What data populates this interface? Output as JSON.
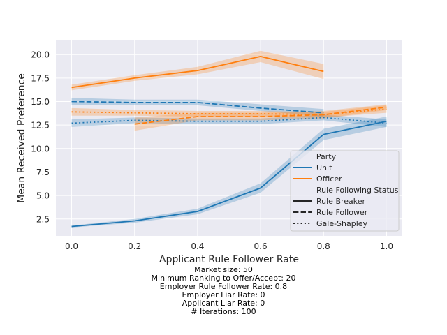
{
  "chart_data": {
    "type": "line",
    "xlabel": "Applicant Rule Follower Rate",
    "ylabel": "Mean Received Preference",
    "xlim": [
      -0.05,
      1.05
    ],
    "ylim": [
      0.7,
      21.5
    ],
    "xticks": [
      "0.0",
      "0.2",
      "0.4",
      "0.6",
      "0.8",
      "1.0"
    ],
    "yticks": [
      "2.5",
      "5.0",
      "7.5",
      "10.0",
      "12.5",
      "15.0",
      "17.5",
      "20.0"
    ],
    "grid": true,
    "legend_position": "lower-right",
    "legend": {
      "party_title": "Party",
      "party_entries": [
        {
          "label": "Unit",
          "color": "#1f77b4"
        },
        {
          "label": "Officer",
          "color": "#ff7f0e"
        }
      ],
      "status_title": "Rule Following Status",
      "status_entries": [
        {
          "label": "Rule Breaker",
          "dash": "solid"
        },
        {
          "label": "Rule Follower",
          "dash": "dashed"
        },
        {
          "label": "Gale-Shapley",
          "dash": "dotted"
        }
      ]
    },
    "series": [
      {
        "party": "Unit",
        "status": "Rule Breaker",
        "color": "#1f77b4",
        "dash": "solid",
        "x": [
          0.0,
          0.2,
          0.4,
          0.6,
          0.8,
          1.0
        ],
        "values": [
          1.7,
          2.3,
          3.3,
          5.8,
          11.5,
          12.9
        ],
        "ci_low": [
          1.6,
          2.1,
          3.0,
          5.3,
          10.9,
          12.3
        ],
        "ci_high": [
          1.8,
          2.5,
          3.6,
          6.3,
          12.1,
          13.4
        ]
      },
      {
        "party": "Unit",
        "status": "Rule Follower",
        "color": "#1f77b4",
        "dash": "dashed",
        "x": [
          0.0,
          0.2,
          0.4,
          0.6,
          0.8
        ],
        "values": [
          15.0,
          14.9,
          14.9,
          14.3,
          13.8
        ],
        "ci_low": [
          14.6,
          14.6,
          14.6,
          14.0,
          13.4
        ],
        "ci_high": [
          15.4,
          15.2,
          15.2,
          14.7,
          14.2
        ]
      },
      {
        "party": "Unit",
        "status": "Gale-Shapley",
        "color": "#1f77b4",
        "dash": "dotted",
        "x": [
          0.0,
          0.2,
          0.4,
          0.6,
          0.8,
          1.0
        ],
        "values": [
          12.7,
          13.0,
          12.9,
          12.9,
          13.3,
          12.7
        ],
        "ci_low": [
          12.3,
          12.7,
          12.6,
          12.6,
          13.0,
          12.3
        ],
        "ci_high": [
          13.1,
          13.3,
          13.2,
          13.2,
          13.6,
          13.1
        ]
      },
      {
        "party": "Officer",
        "status": "Rule Breaker",
        "color": "#ff7f0e",
        "dash": "solid",
        "x": [
          0.0,
          0.2,
          0.4,
          0.6,
          0.8
        ],
        "values": [
          16.5,
          17.5,
          18.3,
          19.8,
          18.2
        ],
        "ci_low": [
          16.2,
          17.2,
          17.9,
          19.2,
          17.4
        ],
        "ci_high": [
          16.8,
          17.8,
          18.7,
          20.4,
          19.0
        ]
      },
      {
        "party": "Officer",
        "status": "Rule Follower",
        "color": "#ff7f0e",
        "dash": "dashed",
        "x": [
          0.2,
          0.4,
          0.6,
          0.8,
          1.0
        ],
        "values": [
          12.6,
          13.4,
          13.4,
          13.6,
          14.4
        ],
        "ci_low": [
          11.9,
          13.0,
          13.0,
          13.2,
          14.1
        ],
        "ci_high": [
          13.3,
          13.8,
          13.8,
          14.0,
          14.7
        ]
      },
      {
        "party": "Officer",
        "status": "Gale-Shapley",
        "color": "#ff7f0e",
        "dash": "dotted",
        "x": [
          0.0,
          0.2,
          0.4,
          0.6,
          0.8,
          1.0
        ],
        "values": [
          13.9,
          13.8,
          13.7,
          13.7,
          13.6,
          14.2
        ],
        "ci_low": [
          13.5,
          13.5,
          13.4,
          13.4,
          13.3,
          13.8
        ],
        "ci_high": [
          14.3,
          14.1,
          14.0,
          14.0,
          13.9,
          14.6
        ]
      }
    ]
  },
  "caption": [
    "Market size: 50",
    "Minimum Ranking to Offer/Accept: 20",
    "Employer Rule Follower Rate: 0.8",
    "Employer Liar Rate: 0",
    "Applicant Liar Rate: 0",
    "# Iterations: 100"
  ]
}
